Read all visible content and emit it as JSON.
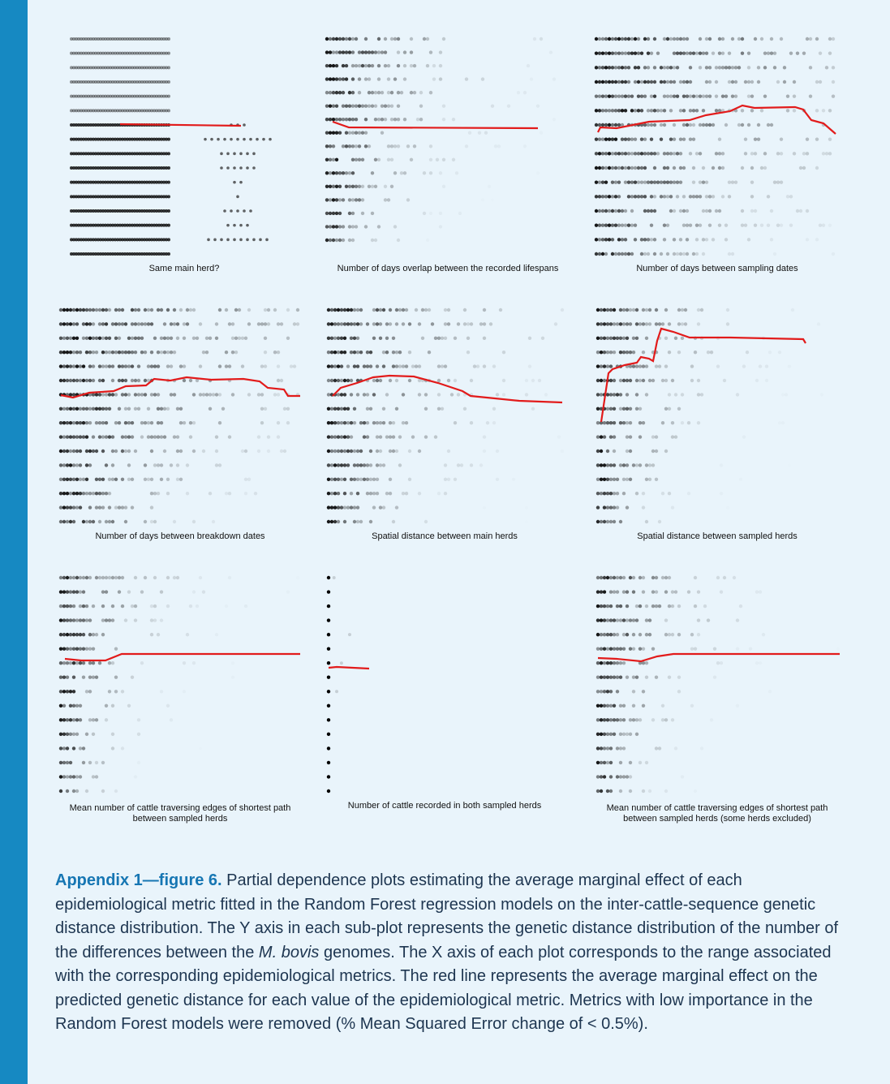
{
  "figure": {
    "panels": [
      {
        "label": "Same main herd?"
      },
      {
        "label": "Number of days overlap between the recorded lifespans"
      },
      {
        "label": "Number of days between sampling dates"
      },
      {
        "label": "Number of days between breakdown dates"
      },
      {
        "label": "Spatial distance between main herds"
      },
      {
        "label": "Spatial distance between sampled herds"
      },
      {
        "label": "Mean number of cattle traversing edges of shortest path between sampled herds"
      },
      {
        "label": "Number of cattle recorded in both sampled herds"
      },
      {
        "label": "Mean number of cattle traversing edges of shortest path between sampled herds (some herds excluded)"
      }
    ],
    "caption": {
      "label": "Appendix 1—figure 6.",
      "text_before": " Partial dependence plots estimating the average marginal effect of each epidemiological metric fitted in the Random Forest regression models on the inter-cattle-sequence genetic distance distribution. The Y axis in each sub-plot represents the genetic distance distribution of the number of the differences between the ",
      "italic": "M. bovis",
      "text_after": " genomes. The X axis of each plot corresponds to the range associated with the corresponding epidemiological metrics. The red line represents the average marginal effect on the predicted genetic distance for each value of the epidemiological metric. Metrics with low importance in the Random Forest models were removed (% Mean Squared Error change of < 0.5%)."
    }
  }
}
